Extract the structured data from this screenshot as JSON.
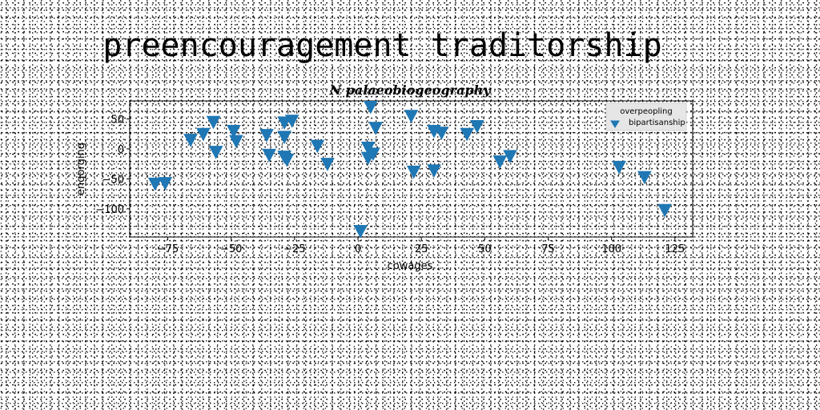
{
  "suptitle": "preencouragement traditorship",
  "chart_data": {
    "type": "scatter",
    "title": "N palaeobiogeography",
    "xlabel": "cowages",
    "ylabel": "engorging",
    "xlim": [
      -90,
      132
    ],
    "ylim": [
      -147,
      80
    ],
    "xticks": [
      -75,
      -50,
      -25,
      0,
      25,
      50,
      75,
      100,
      125
    ],
    "yticks": [
      50,
      0,
      -50,
      -100
    ],
    "tick_labels_x": [
      "−75",
      "−50",
      "−25",
      "0",
      "25",
      "50",
      "75",
      "100",
      "125"
    ],
    "tick_labels_y": [
      "50",
      "0",
      "−50",
      "−100"
    ],
    "grid": false,
    "legend": {
      "placement": "top-right",
      "title": "overpeopling"
    },
    "marker": "triangle_down",
    "color": "#1f77b4",
    "series": [
      {
        "name": "bipartisanship",
        "points": [
          [
            -80,
            -58
          ],
          [
            -76,
            -57
          ],
          [
            -66,
            15
          ],
          [
            -61,
            25
          ],
          [
            -57,
            45
          ],
          [
            -56,
            -5
          ],
          [
            -49,
            30
          ],
          [
            -48,
            13
          ],
          [
            -36,
            23
          ],
          [
            -35,
            -10
          ],
          [
            -29,
            44
          ],
          [
            -29,
            20
          ],
          [
            -29,
            -13
          ],
          [
            -28,
            -18
          ],
          [
            -26,
            47
          ],
          [
            -16,
            5
          ],
          [
            -12,
            -25
          ],
          [
            1,
            -137
          ],
          [
            4,
            2
          ],
          [
            4,
            -15
          ],
          [
            5,
            70
          ],
          [
            6,
            -8
          ],
          [
            7,
            35
          ],
          [
            21,
            55
          ],
          [
            22,
            -38
          ],
          [
            30,
            -36
          ],
          [
            30,
            30
          ],
          [
            33,
            27
          ],
          [
            43,
            25
          ],
          [
            47,
            38
          ],
          [
            56,
            -21
          ],
          [
            60,
            -12
          ],
          [
            103,
            -30
          ],
          [
            113,
            -47
          ],
          [
            121,
            -102
          ]
        ]
      }
    ]
  }
}
